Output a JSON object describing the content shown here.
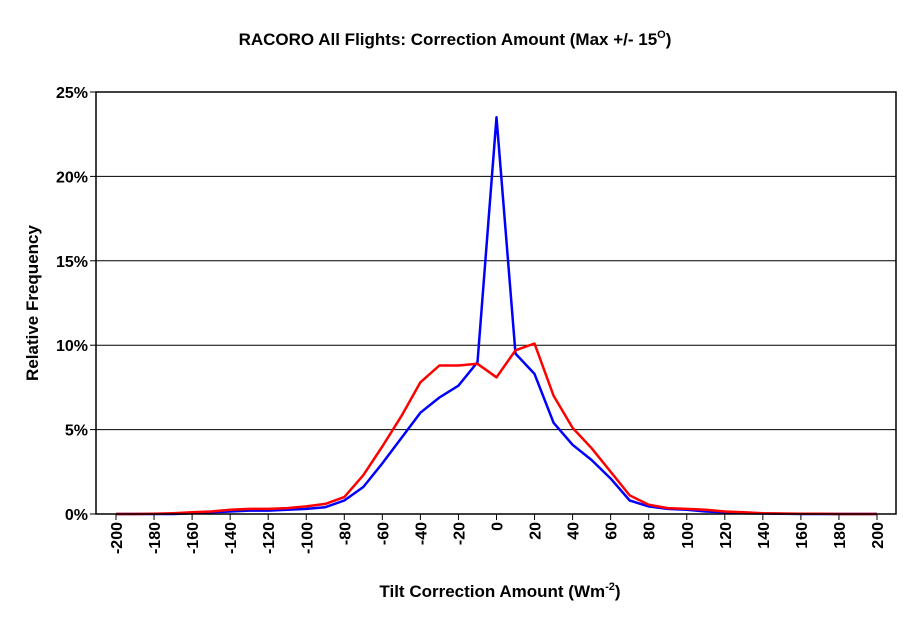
{
  "chart_data": {
    "type": "line",
    "title": "RACORO All Flights: Correction Amount (Max +/- 15",
    "title_sup": "O",
    "title_end": ")",
    "xlabel": "Tilt Correction Amount (Wm",
    "xlabel_sup": "-2",
    "xlabel_end": ")",
    "ylabel": "Relative Frequency",
    "xlim": [
      -200,
      200
    ],
    "ylim": [
      0,
      25
    ],
    "x_ticks": [
      "-200",
      "-180",
      "-160",
      "-140",
      "-120",
      "-100",
      "-80",
      "-60",
      "-40",
      "-20",
      "0",
      "20",
      "40",
      "60",
      "80",
      "100",
      "120",
      "140",
      "160",
      "180",
      "200"
    ],
    "y_ticks": [
      "0%",
      "5%",
      "10%",
      "15%",
      "20%",
      "25%"
    ],
    "grid": "horizontal",
    "series": [
      {
        "color": "#0000ff",
        "x": [
          -200,
          -190,
          -180,
          -170,
          -160,
          -150,
          -140,
          -130,
          -120,
          -110,
          -100,
          -90,
          -80,
          -70,
          -60,
          -50,
          -40,
          -30,
          -20,
          -10,
          0,
          10,
          20,
          30,
          40,
          50,
          60,
          70,
          80,
          90,
          100,
          110,
          120,
          130,
          140,
          150,
          160,
          170,
          180,
          190,
          200
        ],
        "values": [
          0,
          0,
          0,
          0,
          0.05,
          0.1,
          0.15,
          0.2,
          0.2,
          0.25,
          0.3,
          0.4,
          0.8,
          1.6,
          3.0,
          4.5,
          6.0,
          6.9,
          7.6,
          9.0,
          23.5,
          9.5,
          8.3,
          5.4,
          4.1,
          3.2,
          2.1,
          0.8,
          0.45,
          0.3,
          0.25,
          0.15,
          0.1,
          0.05,
          0.03,
          0.02,
          0,
          0,
          0,
          0,
          0
        ]
      },
      {
        "color": "#ff0000",
        "x": [
          -200,
          -190,
          -180,
          -170,
          -160,
          -150,
          -140,
          -130,
          -120,
          -110,
          -100,
          -90,
          -80,
          -70,
          -60,
          -50,
          -40,
          -30,
          -20,
          -10,
          0,
          10,
          20,
          30,
          40,
          50,
          60,
          70,
          80,
          90,
          100,
          110,
          120,
          130,
          140,
          150,
          160,
          170,
          180,
          190,
          200
        ],
        "values": [
          0,
          0,
          0.02,
          0.05,
          0.1,
          0.15,
          0.25,
          0.3,
          0.3,
          0.35,
          0.45,
          0.6,
          1.0,
          2.3,
          4.0,
          5.8,
          7.8,
          8.8,
          8.8,
          8.9,
          8.1,
          9.7,
          10.1,
          7.0,
          5.1,
          3.9,
          2.5,
          1.1,
          0.55,
          0.35,
          0.3,
          0.25,
          0.15,
          0.1,
          0.05,
          0.03,
          0.02,
          0.01,
          0,
          0,
          0
        ]
      }
    ]
  }
}
